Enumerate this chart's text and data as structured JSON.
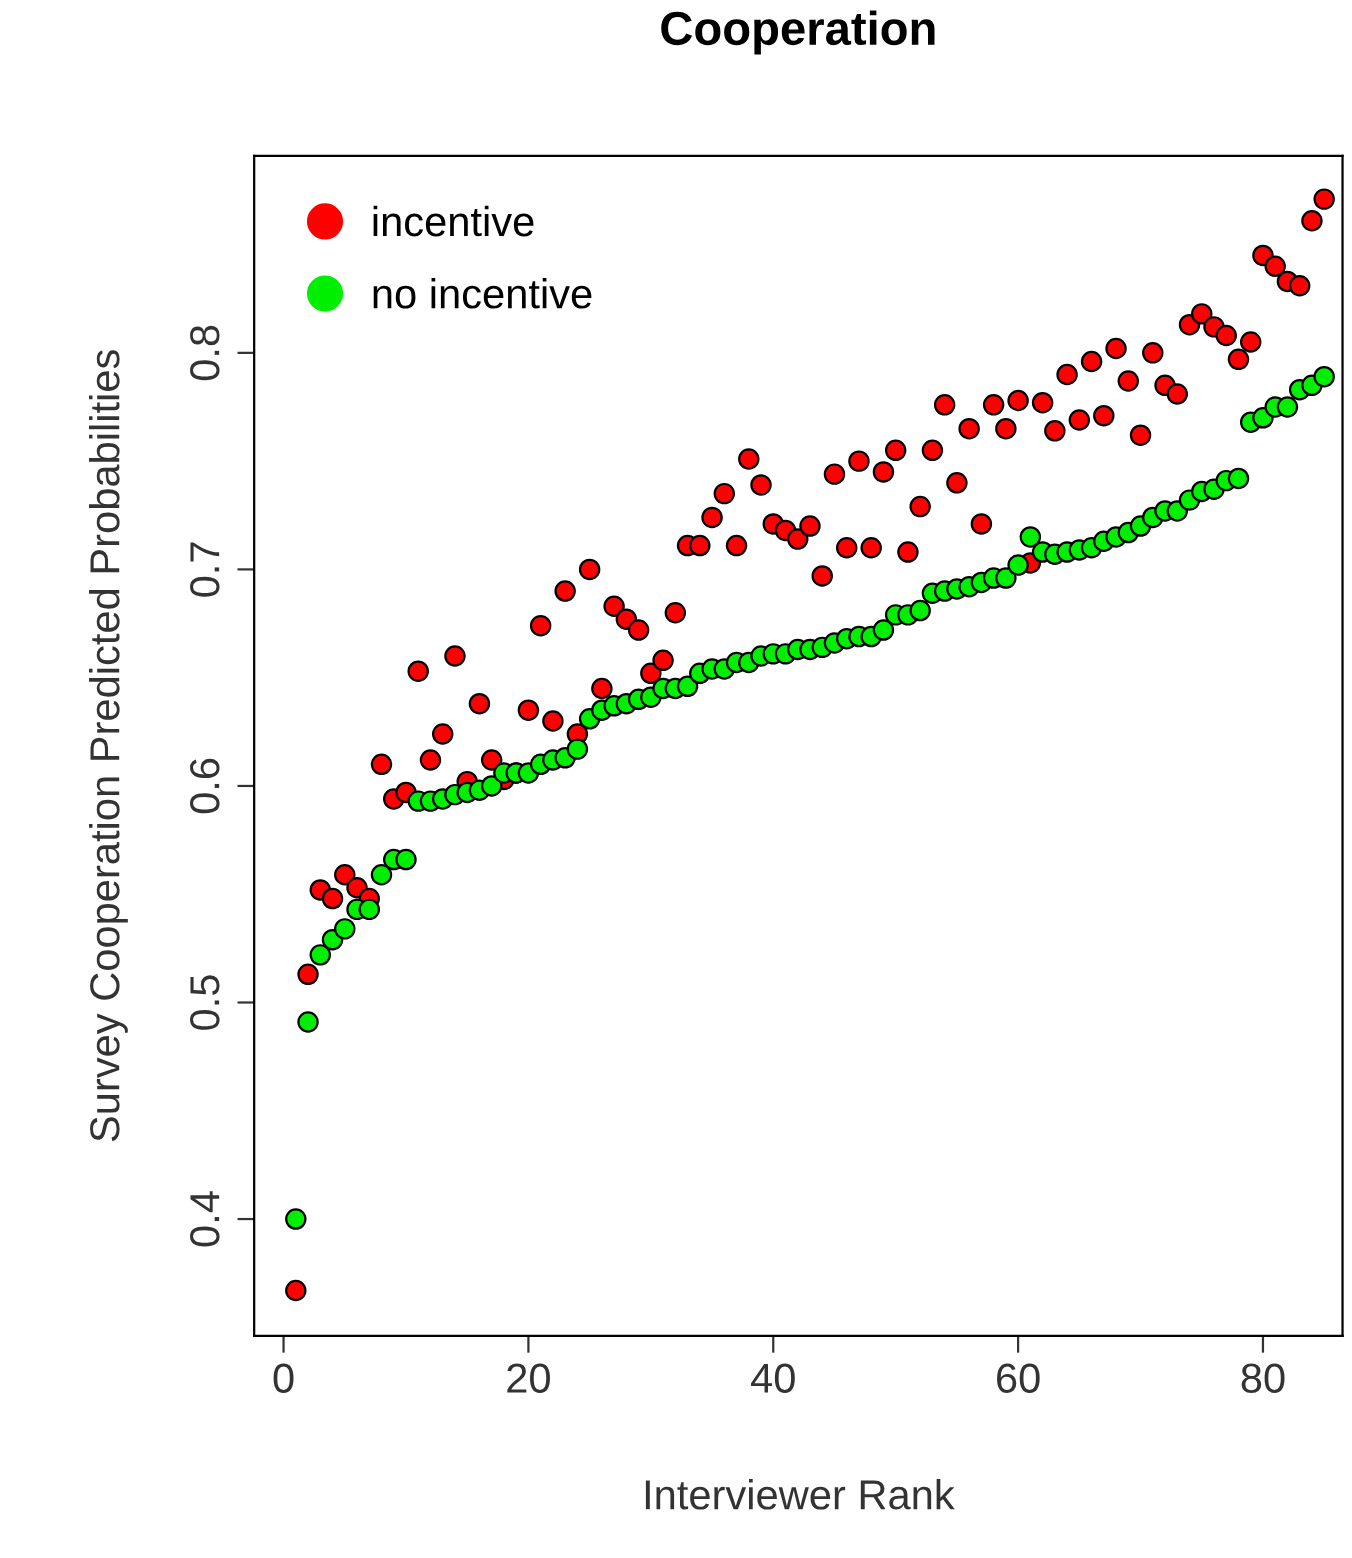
{
  "chart_data": {
    "type": "scatter",
    "title": "Cooperation",
    "xlabel": "Interviewer Rank",
    "ylabel": "Survey Cooperation Predicted Probabilities",
    "x": [
      1,
      2,
      3,
      4,
      5,
      6,
      7,
      8,
      9,
      10,
      11,
      12,
      13,
      14,
      15,
      16,
      17,
      18,
      19,
      20,
      21,
      22,
      23,
      24,
      25,
      26,
      27,
      28,
      29,
      30,
      31,
      32,
      33,
      34,
      35,
      36,
      37,
      38,
      39,
      40,
      41,
      42,
      43,
      44,
      45,
      46,
      47,
      48,
      49,
      50,
      51,
      52,
      53,
      54,
      55,
      56,
      57,
      58,
      59,
      60,
      61,
      62,
      63,
      64,
      65,
      66,
      67,
      68,
      69,
      70,
      71,
      72,
      73,
      74,
      75,
      76,
      77,
      78,
      79,
      80,
      81,
      82,
      83,
      84,
      85
    ],
    "series": [
      {
        "name": "incentive",
        "color": "#ff0000",
        "values": [
          0.367,
          0.513,
          0.552,
          0.548,
          0.559,
          0.553,
          0.548,
          0.61,
          0.594,
          0.597,
          0.653,
          0.612,
          0.624,
          0.66,
          0.602,
          0.638,
          0.612,
          0.603,
          0.606,
          0.635,
          0.674,
          0.63,
          0.69,
          0.624,
          0.7,
          0.645,
          0.683,
          0.677,
          0.672,
          0.652,
          0.658,
          0.68,
          0.711,
          0.711,
          0.724,
          0.735,
          0.711,
          0.751,
          0.739,
          0.721,
          0.718,
          0.714,
          0.72,
          0.697,
          0.744,
          0.71,
          0.75,
          0.71,
          0.745,
          0.755,
          0.708,
          0.729,
          0.755,
          0.776,
          0.74,
          0.765,
          0.721,
          0.776,
          0.765,
          0.778,
          0.703,
          0.777,
          0.764,
          0.79,
          0.769,
          0.796,
          0.771,
          0.802,
          0.787,
          0.762,
          0.8,
          0.785,
          0.781,
          0.813,
          0.818,
          0.812,
          0.808,
          0.797,
          0.805,
          0.845,
          0.84,
          0.833,
          0.831,
          0.861,
          0.871
        ]
      },
      {
        "name": "no incentive",
        "color": "#00ee00",
        "values": [
          0.4,
          0.491,
          0.522,
          0.529,
          0.534,
          0.543,
          0.543,
          0.559,
          0.566,
          0.566,
          0.593,
          0.593,
          0.594,
          0.596,
          0.597,
          0.598,
          0.6,
          0.606,
          0.606,
          0.606,
          0.61,
          0.612,
          0.613,
          0.617,
          0.631,
          0.635,
          0.637,
          0.638,
          0.64,
          0.641,
          0.645,
          0.645,
          0.646,
          0.652,
          0.654,
          0.654,
          0.657,
          0.657,
          0.66,
          0.661,
          0.661,
          0.663,
          0.663,
          0.664,
          0.666,
          0.668,
          0.669,
          0.669,
          0.672,
          0.679,
          0.679,
          0.681,
          0.689,
          0.69,
          0.691,
          0.692,
          0.694,
          0.696,
          0.696,
          0.702,
          0.715,
          0.708,
          0.707,
          0.708,
          0.709,
          0.71,
          0.713,
          0.715,
          0.717,
          0.72,
          0.724,
          0.727,
          0.727,
          0.732,
          0.736,
          0.737,
          0.741,
          0.742,
          0.768,
          0.77,
          0.775,
          0.775,
          0.783,
          0.785,
          0.789
        ]
      }
    ],
    "xlim": [
      -2.4,
      86.5
    ],
    "ylim": [
      0.346,
      0.891
    ],
    "xticks": [
      0,
      20,
      40,
      60,
      80
    ],
    "yticks": [
      0.4,
      0.5,
      0.6,
      0.7,
      0.8
    ],
    "marker": "circle",
    "grid": false,
    "legend": "top left"
  }
}
